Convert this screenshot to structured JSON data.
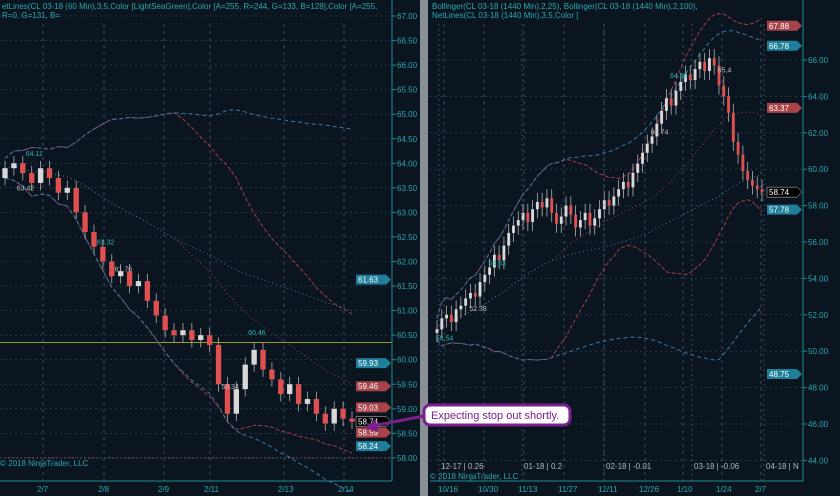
{
  "left_panel": {
    "header": "etLines(CL 03-18 (60 Min),3,5,Color [LightSeaGreen],Color [A=255, R=244, G=133, B=128],Color [A=255, R=0, G=131, B=",
    "copyright": "© 2018 NinjaTrader, LLC",
    "y_ticks": [
      "67.00",
      "66.50",
      "66.00",
      "65.50",
      "65.00",
      "64.50",
      "64.00",
      "63.50",
      "63.00",
      "62.50",
      "62.00",
      "61.50",
      "61.00",
      "60.50",
      "60.00",
      "59.50",
      "59.00",
      "58.50",
      "58.00"
    ],
    "x_labels": [
      "2/7",
      "2/8",
      "2/9",
      "2/11",
      "2/13",
      "2/14"
    ],
    "price_tags": [
      {
        "value": "61.63",
        "color": "#1f7f9a"
      },
      {
        "value": "59.93",
        "color": "#1f7f9a"
      },
      {
        "value": "59.46",
        "color": "#a8434a"
      },
      {
        "value": "59.03",
        "color": "#a8434a"
      },
      {
        "value": "58.74",
        "color": "#000000"
      },
      {
        "value": "58.59",
        "color": "#a8434a"
      },
      {
        "value": "58.24",
        "color": "#1f7f9a"
      }
    ],
    "level_labels": [
      {
        "text": "64.11",
        "i": 3,
        "p": 64.15
      },
      {
        "text": "63.42",
        "i": 2,
        "p": 63.45
      },
      {
        "text": "62.32",
        "i": 11,
        "p": 62.35
      },
      {
        "text": "61.76",
        "i": 13,
        "p": 61.8
      },
      {
        "text": "60.46",
        "i": 28,
        "p": 60.5
      },
      {
        "text": "59.34",
        "i": 25,
        "p": 59.4
      }
    ],
    "horizontal_line": {
      "price": 60.35,
      "color": "#c8c820"
    }
  },
  "right_panel": {
    "header": "Bollinger(CL 03-18 (1440 Min),2,25), Bollinger(CL 03-18 (1440 Min),2,100), NetLines(CL 03-18 (1440 Min),3,5,Color [",
    "copyright": "© 2018 NinjaTrader, LLC",
    "y_ticks": [
      "66.00",
      "64.00",
      "62.00",
      "60.00",
      "58.00",
      "56.00",
      "54.00",
      "52.00",
      "50.00",
      "48.00",
      "46.00",
      "44.00"
    ],
    "x_labels": [
      "10/16",
      "10/30",
      "11/13",
      "11/27",
      "12/11",
      "12/26",
      "1/10",
      "1/24",
      "2/7"
    ],
    "roll_labels": [
      "12-17 | 0.26",
      "01-18 | 0.2",
      "02-18 | -0.01",
      "03-18 | -0.06",
      "04-18 | N"
    ],
    "price_tags": [
      {
        "value": "67.88",
        "color": "#a8434a"
      },
      {
        "value": "66.78",
        "color": "#1f7f9a"
      },
      {
        "value": "63.37",
        "color": "#a8434a"
      },
      {
        "value": "58.74",
        "color": "#000000"
      },
      {
        "value": "57.78",
        "color": "#1f7f9a"
      },
      {
        "value": "48.75",
        "color": "#1f7f9a"
      }
    ],
    "level_labels": [
      {
        "text": "50.54",
        "i": 1,
        "p": 50.6
      },
      {
        "text": "52.38",
        "i": 8,
        "p": 52.2
      },
      {
        "text": "54.63",
        "i": 12,
        "p": 54.7
      },
      {
        "text": "61.74",
        "i": 46,
        "p": 61.9
      },
      {
        "text": "64.82",
        "i": 50,
        "p": 65.0
      },
      {
        "text": "65.4",
        "i": 60,
        "p": 65.3
      }
    ]
  },
  "callout": {
    "text": "Expecting stop out shortly.",
    "color": "#7a1f8c"
  },
  "chart_data": [
    {
      "type": "candlestick",
      "title": "CL 03-18 (60 Min)",
      "ylim": [
        58.0,
        67.0
      ],
      "up_color": "#d8d8d8",
      "down_color": "#e05050",
      "closes": [
        63.9,
        64.0,
        63.8,
        63.6,
        63.9,
        63.7,
        63.4,
        63.5,
        63.0,
        62.6,
        62.3,
        62.0,
        61.7,
        61.8,
        61.5,
        61.6,
        61.2,
        60.9,
        60.6,
        60.5,
        60.6,
        60.4,
        60.5,
        60.3,
        59.5,
        58.9,
        59.4,
        59.9,
        60.2,
        59.8,
        59.6,
        59.3,
        59.5,
        59.1,
        59.2,
        58.9,
        58.7,
        59.0,
        58.8,
        58.74
      ]
    },
    {
      "type": "candlestick",
      "title": "CL 03-18 (1440 Min)",
      "ylim": [
        43.5,
        68.0
      ],
      "up_color": "#d8d8d8",
      "down_color": "#e05050",
      "closes": [
        51.2,
        51.8,
        52.0,
        51.6,
        52.3,
        52.5,
        52.9,
        53.2,
        53.0,
        53.8,
        54.2,
        54.6,
        55.3,
        55.0,
        55.8,
        56.5,
        56.9,
        57.2,
        57.6,
        57.1,
        57.8,
        58.2,
        57.9,
        58.4,
        57.6,
        57.0,
        57.4,
        58.0,
        57.5,
        56.8,
        57.2,
        57.6,
        56.9,
        57.3,
        57.8,
        58.3,
        58.0,
        58.5,
        58.9,
        59.3,
        59.0,
        59.8,
        60.3,
        60.9,
        61.4,
        61.8,
        62.5,
        63.2,
        63.9,
        63.5,
        64.3,
        64.8,
        65.2,
        64.9,
        65.5,
        65.9,
        65.4,
        66.1,
        65.7,
        64.6,
        64.0,
        63.1,
        61.5,
        60.8,
        59.9,
        59.4,
        59.1,
        58.9,
        58.74
      ]
    }
  ]
}
